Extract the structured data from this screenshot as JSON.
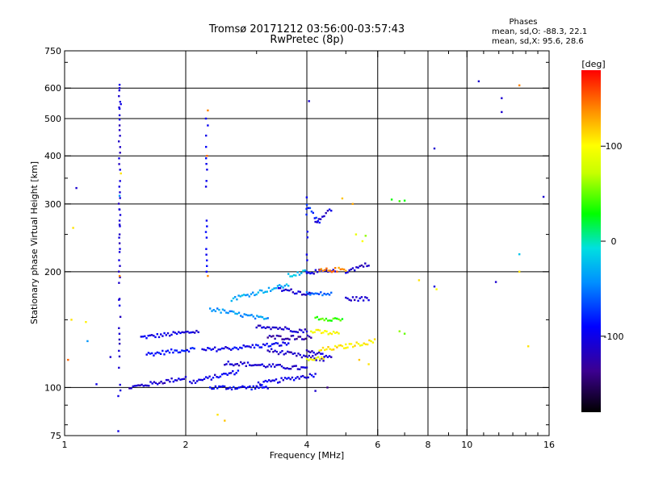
{
  "chart_data": {
    "type": "scatter",
    "title": "Tromsø 20171212 03:56:00-03:57:43",
    "subtitle": "RwPretec (8p)",
    "xlabel": "Frequency [MHz]",
    "ylabel": "Stationary phase Virtual Height [km]",
    "x_scale": "log",
    "y_scale": "log",
    "xlim": [
      1,
      16
    ],
    "ylim": [
      75,
      750
    ],
    "x_ticks": [
      1,
      2,
      4,
      6,
      8,
      10,
      16
    ],
    "x_tick_labels": [
      "1",
      "2",
      "4",
      "6",
      "8",
      "10",
      "16"
    ],
    "y_ticks": [
      75,
      100,
      200,
      300,
      400,
      500,
      600,
      750
    ],
    "y_tick_labels": [
      "75",
      "100",
      "200",
      "300",
      "400",
      "500",
      "600",
      "750"
    ],
    "x_grid_lines": [
      2,
      4,
      6,
      8,
      10
    ],
    "y_grid_lines": [
      100,
      200,
      300,
      400,
      500,
      600
    ],
    "grid": true,
    "stats": {
      "heading": "Phases",
      "line_o": "mean, sd,O: -88.3, 22.1",
      "line_x": "mean, sd,X:  95.6, 28.6"
    },
    "colorbar": {
      "label": "[deg]",
      "min": -180,
      "max": 180,
      "ticks": [
        100,
        0,
        -100
      ],
      "tick_labels": [
        "100",
        "0",
        "-100"
      ]
    },
    "traces": [
      {
        "x0": 1.55,
        "x1": 2.15,
        "h0": 135,
        "h1": 140,
        "phase": -100
      },
      {
        "x0": 1.6,
        "x1": 2.1,
        "h0": 122,
        "h1": 126,
        "phase": -90
      },
      {
        "x0": 1.45,
        "x1": 2.0,
        "h0": 100,
        "h1": 106,
        "phase": -110
      },
      {
        "x0": 2.05,
        "x1": 2.7,
        "h0": 103,
        "h1": 110,
        "phase": -100
      },
      {
        "x0": 2.3,
        "x1": 3.2,
        "h0": 100,
        "h1": 100,
        "phase": -95
      },
      {
        "x0": 3.0,
        "x1": 4.2,
        "h0": 102,
        "h1": 108,
        "phase": -100
      },
      {
        "x0": 2.5,
        "x1": 4.0,
        "h0": 116,
        "h1": 112,
        "phase": -110
      },
      {
        "x0": 2.2,
        "x1": 3.6,
        "h0": 125,
        "h1": 130,
        "phase": -95
      },
      {
        "x0": 3.2,
        "x1": 4.4,
        "h0": 125,
        "h1": 118,
        "phase": -115
      },
      {
        "x0": 2.3,
        "x1": 3.2,
        "h0": 160,
        "h1": 150,
        "phase": -40
      },
      {
        "x0": 3.0,
        "x1": 4.0,
        "h0": 145,
        "h1": 140,
        "phase": -110
      },
      {
        "x0": 2.6,
        "x1": 3.6,
        "h0": 170,
        "h1": 185,
        "phase": -30
      },
      {
        "x0": 3.6,
        "x1": 4.0,
        "h0": 195,
        "h1": 200,
        "phase": -20
      },
      {
        "x0": 3.4,
        "x1": 4.1,
        "h0": 180,
        "h1": 175,
        "phase": -110
      },
      {
        "x0": 4.0,
        "x1": 4.7,
        "h0": 200,
        "h1": 200,
        "phase": -105
      },
      {
        "x0": 4.3,
        "x1": 5.0,
        "h0": 201,
        "h1": 203,
        "phase": 140
      },
      {
        "x0": 5.0,
        "x1": 5.7,
        "h0": 200,
        "h1": 210,
        "phase": -115
      },
      {
        "x0": 4.0,
        "x1": 4.6,
        "h0": 175,
        "h1": 175,
        "phase": -60
      },
      {
        "x0": 5.0,
        "x1": 5.7,
        "h0": 170,
        "h1": 170,
        "phase": -110
      },
      {
        "x0": 4.2,
        "x1": 4.9,
        "h0": 152,
        "h1": 150,
        "phase": 40
      },
      {
        "x0": 4.1,
        "x1": 4.8,
        "h0": 140,
        "h1": 138,
        "phase": 100
      },
      {
        "x0": 4.3,
        "x1": 5.0,
        "h0": 125,
        "h1": 128,
        "phase": 110
      },
      {
        "x0": 5.0,
        "x1": 5.9,
        "h0": 128,
        "h1": 132,
        "phase": 105
      },
      {
        "x0": 4.0,
        "x1": 4.4,
        "h0": 118,
        "h1": 120,
        "phase": 95
      },
      {
        "x0": 4.0,
        "x1": 4.6,
        "h0": 124,
        "h1": 120,
        "phase": -110
      },
      {
        "x0": 3.2,
        "x1": 4.1,
        "h0": 135,
        "h1": 135,
        "phase": -125
      },
      {
        "x0": 4.2,
        "x1": 4.6,
        "h0": 270,
        "h1": 290,
        "phase": -110
      },
      {
        "x0": 4.0,
        "x1": 4.3,
        "h0": 300,
        "h1": 265,
        "phase": -80
      }
    ],
    "columns": [
      {
        "x": 1.37,
        "h0": 95,
        "h1": 612,
        "phase": -110
      },
      {
        "x": 2.25,
        "h0": 200,
        "h1": 500,
        "phase": -95
      },
      {
        "x": 4.0,
        "h0": 200,
        "h1": 312,
        "phase": -90
      }
    ],
    "points": [
      {
        "x": 1.37,
        "h": 612,
        "phase": -100
      },
      {
        "x": 1.37,
        "h": 600,
        "phase": -105
      },
      {
        "x": 1.38,
        "h": 545,
        "phase": -100
      },
      {
        "x": 1.37,
        "h": 530,
        "phase": -95
      },
      {
        "x": 1.37,
        "h": 510,
        "phase": -110
      },
      {
        "x": 1.37,
        "h": 497,
        "phase": -100
      },
      {
        "x": 1.37,
        "h": 480,
        "phase": -120
      },
      {
        "x": 1.38,
        "h": 360,
        "phase": 110
      },
      {
        "x": 1.37,
        "h": 315,
        "phase": -40
      },
      {
        "x": 1.37,
        "h": 290,
        "phase": -105
      },
      {
        "x": 1.37,
        "h": 265,
        "phase": -110
      },
      {
        "x": 1.37,
        "h": 250,
        "phase": -115
      },
      {
        "x": 1.37,
        "h": 225,
        "phase": -105
      },
      {
        "x": 1.37,
        "h": 195,
        "phase": 140
      },
      {
        "x": 1.37,
        "h": 170,
        "phase": -110
      },
      {
        "x": 1.37,
        "h": 130,
        "phase": -120
      },
      {
        "x": 1.36,
        "h": 95,
        "phase": -100
      },
      {
        "x": 1.36,
        "h": 77,
        "phase": -100
      },
      {
        "x": 2.27,
        "h": 525,
        "phase": 140
      },
      {
        "x": 2.27,
        "h": 480,
        "phase": -95
      },
      {
        "x": 2.26,
        "h": 400,
        "phase": 150
      },
      {
        "x": 2.27,
        "h": 195,
        "phase": 140
      },
      {
        "x": 4.05,
        "h": 555,
        "phase": -110
      },
      {
        "x": 8.3,
        "h": 418,
        "phase": -110
      },
      {
        "x": 10.7,
        "h": 625,
        "phase": -110
      },
      {
        "x": 12.2,
        "h": 565,
        "phase": -110
      },
      {
        "x": 12.2,
        "h": 520,
        "phase": -110
      },
      {
        "x": 13.5,
        "h": 610,
        "phase": 140
      },
      {
        "x": 15.5,
        "h": 313,
        "phase": -110
      },
      {
        "x": 1.07,
        "h": 330,
        "phase": -110
      },
      {
        "x": 1.05,
        "h": 260,
        "phase": 110
      },
      {
        "x": 1.04,
        "h": 150,
        "phase": 110
      },
      {
        "x": 1.13,
        "h": 148,
        "phase": 105
      },
      {
        "x": 1.14,
        "h": 132,
        "phase": -40
      },
      {
        "x": 1.02,
        "h": 118,
        "phase": 150
      },
      {
        "x": 1.2,
        "h": 102,
        "phase": -100
      },
      {
        "x": 1.3,
        "h": 120,
        "phase": -110
      },
      {
        "x": 4.9,
        "h": 310,
        "phase": 120
      },
      {
        "x": 5.2,
        "h": 300,
        "phase": 130
      },
      {
        "x": 6.5,
        "h": 308,
        "phase": 30
      },
      {
        "x": 6.8,
        "h": 305,
        "phase": 40
      },
      {
        "x": 7.0,
        "h": 306,
        "phase": 30
      },
      {
        "x": 5.3,
        "h": 250,
        "phase": 90
      },
      {
        "x": 5.6,
        "h": 248,
        "phase": 60
      },
      {
        "x": 5.5,
        "h": 240,
        "phase": 100
      },
      {
        "x": 7.6,
        "h": 190,
        "phase": 110
      },
      {
        "x": 8.3,
        "h": 183,
        "phase": -105
      },
      {
        "x": 8.4,
        "h": 180,
        "phase": 100
      },
      {
        "x": 11.8,
        "h": 188,
        "phase": -110
      },
      {
        "x": 13.5,
        "h": 200,
        "phase": 110
      },
      {
        "x": 13.5,
        "h": 222,
        "phase": -20
      },
      {
        "x": 14.2,
        "h": 128,
        "phase": 110
      },
      {
        "x": 6.8,
        "h": 140,
        "phase": 60
      },
      {
        "x": 7.0,
        "h": 138,
        "phase": 50
      },
      {
        "x": 5.7,
        "h": 115,
        "phase": 110
      },
      {
        "x": 5.4,
        "h": 118,
        "phase": 120
      },
      {
        "x": 2.4,
        "h": 85,
        "phase": 110
      },
      {
        "x": 2.5,
        "h": 82,
        "phase": 120
      },
      {
        "x": 4.5,
        "h": 100,
        "phase": -140
      },
      {
        "x": 4.2,
        "h": 98,
        "phase": -110
      }
    ]
  }
}
